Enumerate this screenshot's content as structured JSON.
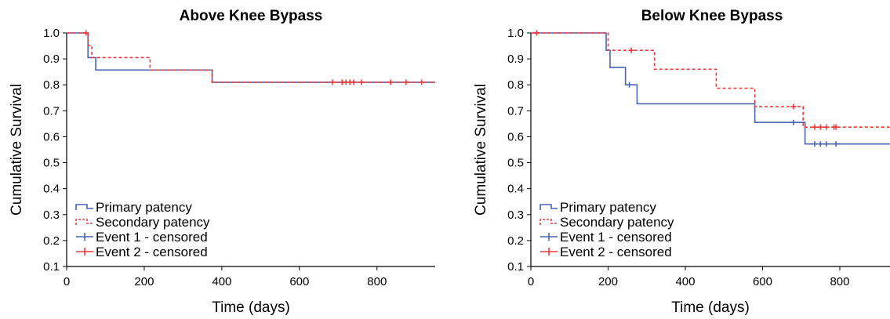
{
  "colors": {
    "primary": "#4a63b4",
    "secondary": "#ee3b3b",
    "axis": "#000000"
  },
  "chart_data": [
    {
      "type": "line",
      "subtype": "kaplan-meier-step",
      "title": "Above Knee Bypass",
      "xlabel": "Time (days)",
      "ylabel": "Cumulative Survival",
      "xlim": [
        0,
        950
      ],
      "ylim": [
        0.1,
        1.0
      ],
      "xticks": [
        0,
        200,
        400,
        600,
        800
      ],
      "yticks": [
        0.1,
        0.2,
        0.3,
        0.4,
        0.5,
        0.6,
        0.7,
        0.8,
        0.9,
        1.0
      ],
      "ytick_labels": [
        "0.1",
        "0.2",
        "0.3",
        "0.4",
        "0.5",
        "0.6",
        "0.7",
        "0.8",
        "0.9",
        "1.0"
      ],
      "grid": false,
      "legend_position": "bottom-left",
      "legend": [
        "Primary patency",
        "Secondary patency",
        "Event 1 - censored",
        "Event 2 - censored"
      ],
      "series": [
        {
          "name": "Primary patency",
          "style": "solid",
          "color": "#4a63b4",
          "steps": [
            [
              0,
              1.0
            ],
            [
              55,
              0.905
            ],
            [
              75,
              0.857
            ],
            [
              375,
              0.81
            ],
            [
              950,
              0.81
            ]
          ],
          "censored": [
            [
              50,
              1.0
            ]
          ]
        },
        {
          "name": "Secondary patency",
          "style": "dashed",
          "color": "#ee3b3b",
          "steps": [
            [
              0,
              1.0
            ],
            [
              55,
              0.952
            ],
            [
              65,
              0.905
            ],
            [
              215,
              0.857
            ],
            [
              375,
              0.81
            ],
            [
              950,
              0.81
            ]
          ],
          "censored": [
            [
              50,
              1.0
            ],
            [
              685,
              0.81
            ],
            [
              710,
              0.81
            ],
            [
              720,
              0.81
            ],
            [
              730,
              0.81
            ],
            [
              740,
              0.81
            ],
            [
              760,
              0.81
            ],
            [
              835,
              0.81
            ],
            [
              875,
              0.81
            ],
            [
              915,
              0.81
            ]
          ]
        }
      ]
    },
    {
      "type": "line",
      "subtype": "kaplan-meier-step",
      "title": "Below Knee Bypass",
      "xlabel": "Time (days)",
      "ylabel": "Cumulative Survival",
      "xlim": [
        0,
        930
      ],
      "ylim": [
        0.1,
        1.0
      ],
      "xticks": [
        0,
        200,
        400,
        600,
        800
      ],
      "yticks": [
        0.1,
        0.2,
        0.3,
        0.4,
        0.5,
        0.6,
        0.7,
        0.8,
        0.9,
        1.0
      ],
      "ytick_labels": [
        "0.1",
        "0.2",
        "0.3",
        "0.4",
        "0.5",
        "0.6",
        "0.7",
        "0.8",
        "0.9",
        "1.0"
      ],
      "grid": false,
      "legend_position": "bottom-left",
      "legend": [
        "Primary patency",
        "Secondary patency",
        "Event 1 - censored",
        "Event 2 - censored"
      ],
      "series": [
        {
          "name": "Primary patency",
          "style": "solid",
          "color": "#4a63b4",
          "steps": [
            [
              0,
              1.0
            ],
            [
              195,
              0.933
            ],
            [
              205,
              0.867
            ],
            [
              245,
              0.8
            ],
            [
              275,
              0.727
            ],
            [
              580,
              0.655
            ],
            [
              710,
              0.572
            ],
            [
              930,
              0.572
            ]
          ],
          "censored": [
            [
              15,
              1.0
            ],
            [
              255,
              0.8
            ],
            [
              680,
              0.655
            ],
            [
              735,
              0.572
            ],
            [
              750,
              0.572
            ],
            [
              765,
              0.572
            ],
            [
              790,
              0.572
            ]
          ]
        },
        {
          "name": "Secondary patency",
          "style": "dashed",
          "color": "#ee3b3b",
          "steps": [
            [
              0,
              1.0
            ],
            [
              200,
              0.933
            ],
            [
              320,
              0.86
            ],
            [
              480,
              0.787
            ],
            [
              580,
              0.716
            ],
            [
              705,
              0.637
            ],
            [
              930,
              0.637
            ]
          ],
          "censored": [
            [
              15,
              1.0
            ],
            [
              260,
              0.933
            ],
            [
              680,
              0.716
            ],
            [
              735,
              0.637
            ],
            [
              750,
              0.637
            ],
            [
              765,
              0.637
            ],
            [
              785,
              0.637
            ],
            [
              790,
              0.637
            ]
          ]
        }
      ]
    }
  ]
}
